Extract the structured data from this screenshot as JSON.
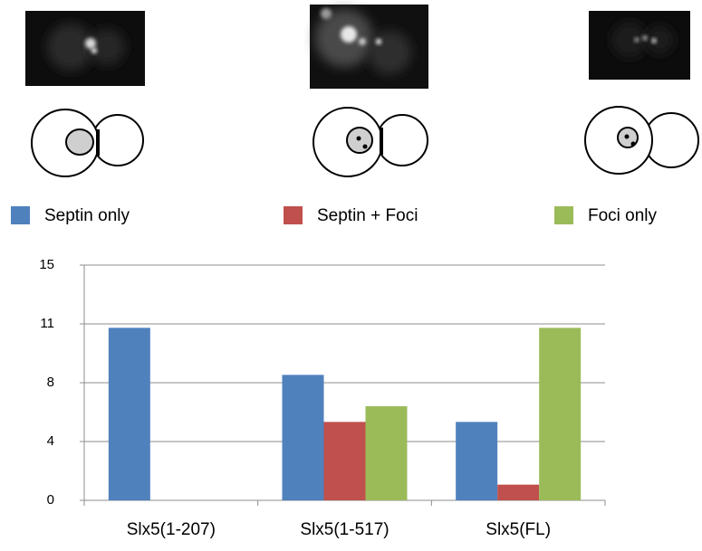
{
  "chart_data": {
    "type": "bar",
    "categories": [
      "Slx5(1-207)",
      "Slx5(1-517)",
      "Slx5(FL)"
    ],
    "series": [
      {
        "name": "Septin only",
        "color": "#4f81bd",
        "values": [
          11,
          8,
          5
        ]
      },
      {
        "name": "Septin + Foci",
        "color": "#c0504d",
        "values": [
          0,
          5,
          1
        ]
      },
      {
        "name": "Foci only",
        "color": "#9bbb59",
        "values": [
          0,
          6,
          11
        ]
      }
    ],
    "ylim": [
      0,
      15
    ],
    "yticks": [
      0,
      {
        "value": 3.75,
        "label": "4"
      },
      {
        "value": 7.5,
        "label": "8"
      },
      {
        "value": 11.25,
        "label": "11"
      },
      15
    ],
    "grid": true,
    "legend": "top"
  }
}
